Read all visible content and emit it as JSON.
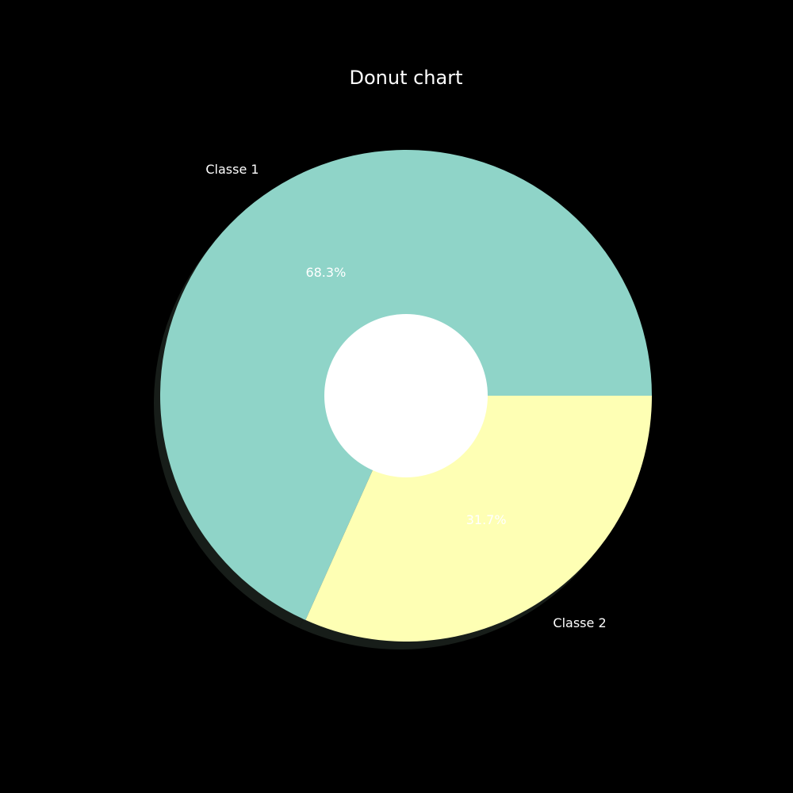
{
  "chart_data": {
    "type": "pie",
    "title": "Donut chart",
    "labels": [
      "Classe 1",
      "Classe 2"
    ],
    "values": [
      68.3,
      31.7
    ],
    "value_labels": [
      "68.3%",
      "31.7%"
    ],
    "colors": [
      "#8fd4c8",
      "#feffb4"
    ],
    "hole_color": "#ffffff",
    "background": "#000000",
    "shadow": true,
    "legend": false
  }
}
